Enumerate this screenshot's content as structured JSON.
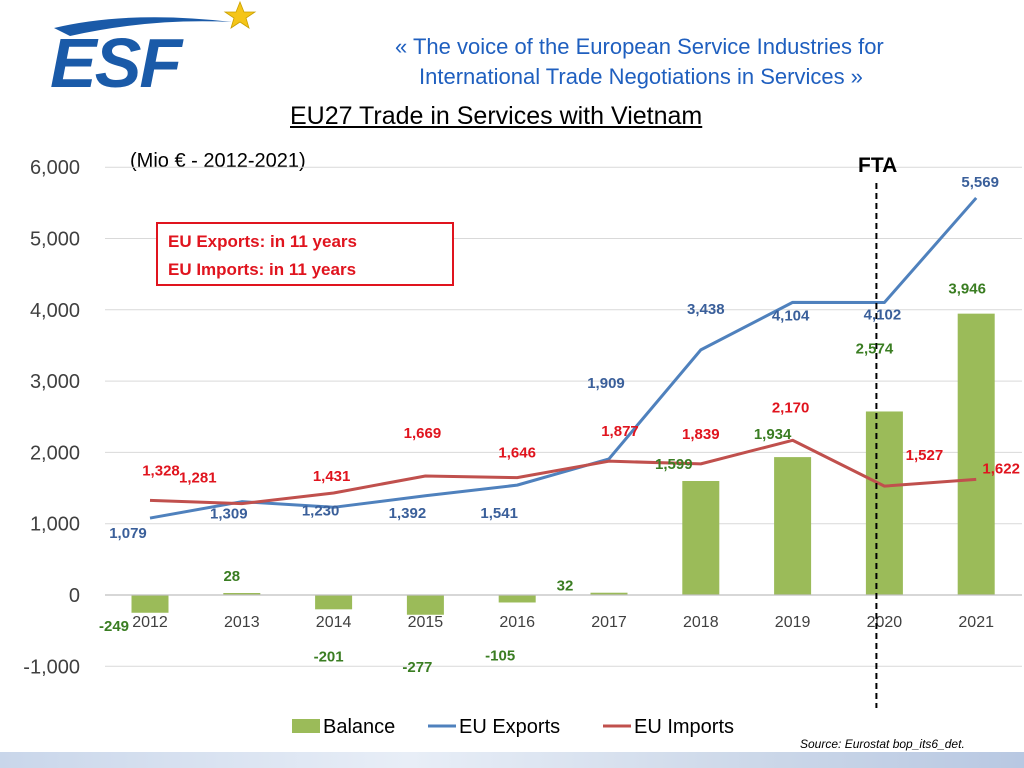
{
  "header": {
    "logo_text": "ESF",
    "tagline_line1": "«  The voice of the European Service Industries for",
    "tagline_line2": "International Trade Negotiations in Services  »"
  },
  "colors": {
    "balance": "#9bbb59",
    "exports": "#4f81bd",
    "imports": "#c0504d",
    "callout": "#e0141e",
    "tagline": "#1f5fbf",
    "label_balance": "#3a7d22",
    "label_exports": "#3a5f9a",
    "label_imports": "#e0141e"
  },
  "chart_data": {
    "type": "bar",
    "title": "EU27 Trade in Services with Vietnam",
    "subtitle": "(Mio € - 2012-2021)",
    "categories": [
      "2012",
      "2013",
      "2014",
      "2015",
      "2016",
      "2017",
      "2018",
      "2019",
      "2020",
      "2021"
    ],
    "ylim": [
      -1000,
      6000
    ],
    "yticks": [
      -1000,
      0,
      1000,
      2000,
      3000,
      4000,
      5000,
      6000
    ],
    "ytick_labels": [
      "-1,000",
      "0",
      "1,000",
      "2,000",
      "3,000",
      "4,000",
      "5,000",
      "6,000"
    ],
    "grid": true,
    "legend_position": "bottom",
    "series": [
      {
        "name": "Balance",
        "type": "bar",
        "values": [
          -249,
          28,
          -201,
          -277,
          -105,
          32,
          1599,
          1934,
          2574,
          3946
        ],
        "labels": [
          "-249",
          "28",
          "-201",
          "-277",
          "-105",
          "32",
          "1,599",
          "1,934",
          "2,574",
          "3,946"
        ]
      },
      {
        "name": "EU Exports",
        "type": "line",
        "values": [
          1079,
          1309,
          1230,
          1392,
          1541,
          1909,
          3438,
          4104,
          4102,
          5569
        ],
        "labels": [
          "1,079",
          "1,309",
          "1,230",
          "1,392",
          "1,541",
          "1,909",
          "3,438",
          "4,104",
          "4,102",
          "5,569"
        ]
      },
      {
        "name": "EU Imports",
        "type": "line",
        "values": [
          1328,
          1281,
          1431,
          1669,
          1646,
          1877,
          1839,
          2170,
          1527,
          1622
        ],
        "labels": [
          "1,328",
          "1,281",
          "1,431",
          "1,669",
          "1,646",
          "1,877",
          "1,839",
          "2,170",
          "1,527",
          "1,622"
        ]
      }
    ],
    "annotations": {
      "fta_label": "FTA",
      "fta_year": "2020",
      "callout_line1": "EU Exports:  in 11 years",
      "callout_line2": "EU Imports:  in 11 years"
    }
  },
  "source": "Source: Eurostat bop_its6_det."
}
